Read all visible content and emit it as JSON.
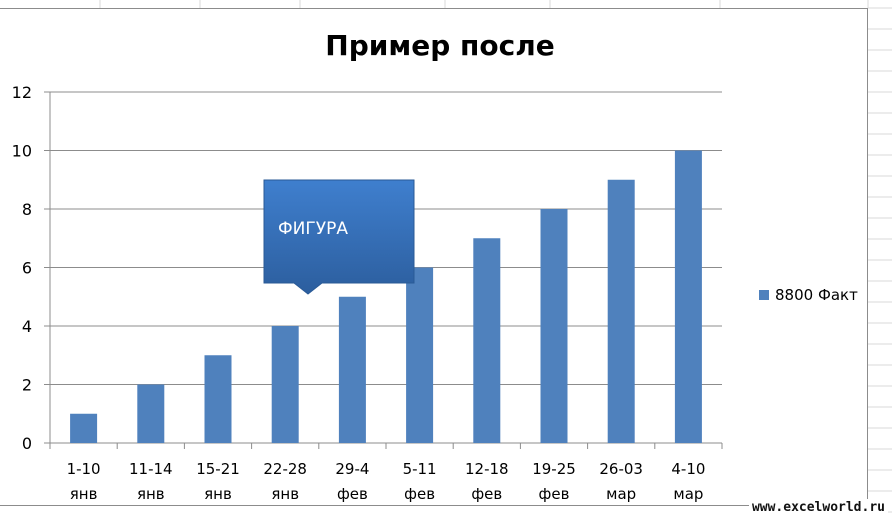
{
  "chart_data": {
    "type": "bar",
    "title": "Пример после",
    "categories": [
      [
        "1-10",
        "янв"
      ],
      [
        "11-14",
        "янв"
      ],
      [
        "15-21",
        "янв"
      ],
      [
        "22-28",
        "янв"
      ],
      [
        "29-4",
        "фев"
      ],
      [
        "5-11",
        "фев"
      ],
      [
        "12-18",
        "фев"
      ],
      [
        "19-25",
        "фев"
      ],
      [
        "26-03",
        "мар"
      ],
      [
        "4-10",
        "мар"
      ]
    ],
    "series": [
      {
        "name": "8800 Факт",
        "values": [
          1,
          2,
          3,
          4,
          5,
          6,
          7,
          8,
          9,
          10
        ],
        "color": "#4f81bd"
      }
    ],
    "ylim": [
      0,
      12
    ],
    "yticks": [
      0,
      2,
      4,
      6,
      8,
      10,
      12
    ],
    "grid": true,
    "legend": "right",
    "annotations": [
      {
        "type": "callout",
        "text": "ФИГУРА"
      }
    ]
  },
  "watermark": "www.excelworld.ru"
}
